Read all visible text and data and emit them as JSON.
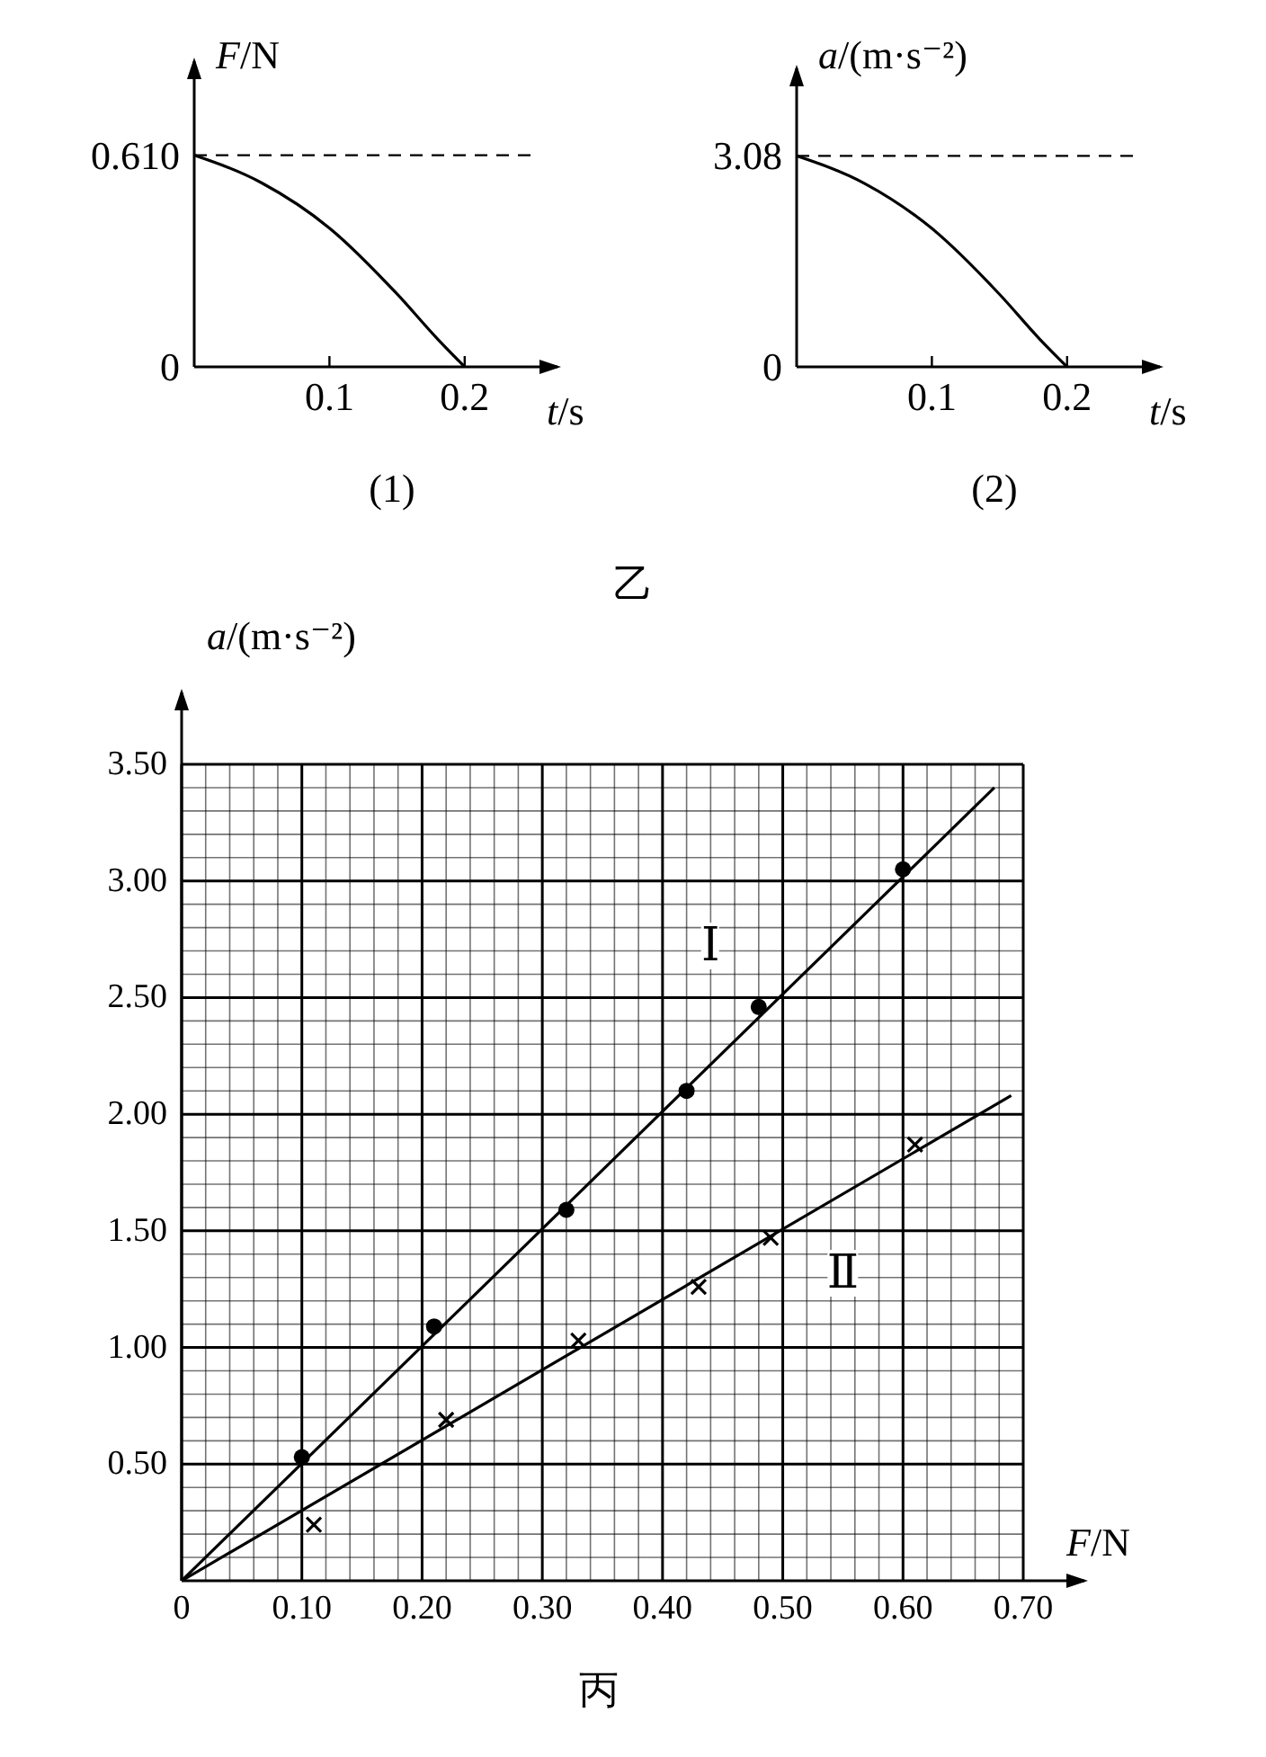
{
  "chart_data": [
    {
      "type": "line",
      "title": "(1)",
      "xlabel": "t/s",
      "ylabel": "F/N",
      "xlim": [
        0,
        0.25
      ],
      "ylim": [
        0,
        0.85
      ],
      "xticks": [
        {
          "value": 0.1,
          "label": "0.1"
        },
        {
          "value": 0.2,
          "label": "0.2"
        }
      ],
      "yticks": [
        {
          "value": 0,
          "label": "0"
        },
        {
          "value": 0.61,
          "label": "0.610"
        }
      ],
      "series": [
        {
          "color": "#000000",
          "x": [
            0,
            0.05,
            0.1,
            0.15,
            0.18,
            0.2
          ],
          "values": [
            0.61,
            0.53,
            0.4,
            0.21,
            0.08,
            0
          ]
        }
      ],
      "ref_lines": [
        {
          "axis": "y",
          "value": 0.61,
          "line_style": "dashed",
          "color": "#000000"
        }
      ],
      "annotations": [
        "乙"
      ]
    },
    {
      "type": "line",
      "title": "(2)",
      "xlabel": "t/s",
      "ylabel": "a/(m·s⁻²)",
      "xlim": [
        0,
        0.25
      ],
      "ylim": [
        0,
        4.2
      ],
      "xticks": [
        {
          "value": 0.1,
          "label": "0.1"
        },
        {
          "value": 0.2,
          "label": "0.2"
        }
      ],
      "yticks": [
        {
          "value": 0,
          "label": "0"
        },
        3.08
      ],
      "series": [
        {
          "color": "#000000",
          "x": [
            0,
            0.05,
            0.1,
            0.15,
            0.18,
            0.2
          ],
          "values": [
            3.08,
            2.68,
            2.02,
            1.06,
            0.4,
            0
          ]
        }
      ],
      "ref_lines": [
        {
          "axis": "y",
          "value": 3.08,
          "line_style": "dashed",
          "color": "#000000"
        }
      ]
    },
    {
      "type": "scatter",
      "title": "丙",
      "xlabel": "F/N",
      "ylabel": "a/(m·s⁻²)",
      "xlim": [
        0,
        0.7
      ],
      "ylim": [
        0,
        3.5
      ],
      "grid": true,
      "xticks": [
        {
          "value": 0,
          "label": "0"
        },
        {
          "value": 0.02,
          "label": null
        },
        {
          "value": 0.04,
          "label": null
        },
        {
          "value": 0.06,
          "label": null
        },
        {
          "value": 0.08,
          "label": null
        },
        {
          "value": 0.1,
          "label": "0.10"
        },
        {
          "value": 0.12,
          "label": null
        },
        {
          "value": 0.14,
          "label": null
        },
        {
          "value": 0.16,
          "label": null
        },
        {
          "value": 0.18,
          "label": null
        },
        {
          "value": 0.2,
          "label": "0.20"
        },
        {
          "value": 0.22,
          "label": null
        },
        {
          "value": 0.24,
          "label": null
        },
        {
          "value": 0.26,
          "label": null
        },
        {
          "value": 0.28,
          "label": null
        },
        {
          "value": 0.3,
          "label": "0.30"
        },
        {
          "value": 0.32,
          "label": null
        },
        {
          "value": 0.34,
          "label": null
        },
        {
          "value": 0.36,
          "label": null
        },
        {
          "value": 0.38,
          "label": null
        },
        {
          "value": 0.4,
          "label": "0.40"
        },
        {
          "value": 0.42,
          "label": null
        },
        {
          "value": 0.44,
          "label": null
        },
        {
          "value": 0.46,
          "label": null
        },
        {
          "value": 0.48,
          "label": null
        },
        {
          "value": 0.5,
          "label": "0.50"
        },
        {
          "value": 0.52,
          "label": null
        },
        {
          "value": 0.54,
          "label": null
        },
        {
          "value": 0.56,
          "label": null
        },
        {
          "value": 0.58,
          "label": null
        },
        {
          "value": 0.6,
          "label": "0.60"
        },
        {
          "value": 0.62,
          "label": null
        },
        {
          "value": 0.64,
          "label": null
        },
        {
          "value": 0.66,
          "label": null
        },
        {
          "value": 0.68,
          "label": null
        },
        {
          "value": 0.7,
          "label": "0.70"
        }
      ],
      "yticks": [
        {
          "value": 0,
          "label": null
        },
        {
          "value": 0.1,
          "label": null
        },
        {
          "value": 0.2,
          "label": null
        },
        {
          "value": 0.3,
          "label": null
        },
        {
          "value": 0.4,
          "label": null
        },
        {
          "value": 0.5,
          "label": "0.50"
        },
        {
          "value": 0.6,
          "label": null
        },
        {
          "value": 0.7,
          "label": null
        },
        {
          "value": 0.8,
          "label": null
        },
        {
          "value": 0.9,
          "label": null
        },
        {
          "value": 1,
          "label": "1.00"
        },
        {
          "value": 1.1,
          "label": null
        },
        {
          "value": 1.2,
          "label": null
        },
        {
          "value": 1.3,
          "label": null
        },
        {
          "value": 1.4,
          "label": null
        },
        {
          "value": 1.5,
          "label": "1.50"
        },
        {
          "value": 1.6,
          "label": null
        },
        {
          "value": 1.7,
          "label": null
        },
        {
          "value": 1.8,
          "label": null
        },
        {
          "value": 1.9,
          "label": null
        },
        {
          "value": 2,
          "label": "2.00"
        },
        {
          "value": 2.1,
          "label": null
        },
        {
          "value": 2.2,
          "label": null
        },
        {
          "value": 2.3,
          "label": null
        },
        {
          "value": 2.4,
          "label": null
        },
        {
          "value": 2.5,
          "label": "2.50"
        },
        {
          "value": 2.6,
          "label": null
        },
        {
          "value": 2.7,
          "label": null
        },
        {
          "value": 2.8,
          "label": null
        },
        {
          "value": 2.9,
          "label": null
        },
        {
          "value": 3,
          "label": "3.00"
        },
        {
          "value": 3.1,
          "label": null
        },
        {
          "value": 3.2,
          "label": null
        },
        {
          "value": 3.3,
          "label": null
        },
        {
          "value": 3.4,
          "label": null
        },
        {
          "value": 3.5,
          "label": "3.50"
        }
      ],
      "series": [
        {
          "type": "scatter",
          "marker": "circle",
          "color": "#000000",
          "x": [
            0.1,
            0.21,
            0.32,
            0.42,
            0.48,
            0.6
          ],
          "values": [
            0.53,
            1.09,
            1.59,
            2.1,
            2.46,
            3.05
          ]
        },
        {
          "type": "scatter",
          "marker": "cross",
          "color": "#000000",
          "x": [
            0.11,
            0.22,
            0.33,
            0.43,
            0.49,
            0.61
          ],
          "values": [
            0.24,
            0.69,
            1.03,
            1.26,
            1.47,
            1.87
          ]
        },
        {
          "type": "line",
          "color": "#000000",
          "x": [
            0,
            0.676
          ],
          "values": [
            0,
            3.4
          ]
        },
        {
          "type": "line",
          "color": "#000000",
          "x": [
            0,
            0.69
          ],
          "values": [
            0,
            2.08
          ]
        }
      ],
      "annotations": [
        {
          "text": "Ⅰ",
          "x": 0.44,
          "y": 2.72
        },
        {
          "text": "Ⅱ",
          "x": 0.55,
          "y": 1.32
        }
      ]
    }
  ]
}
